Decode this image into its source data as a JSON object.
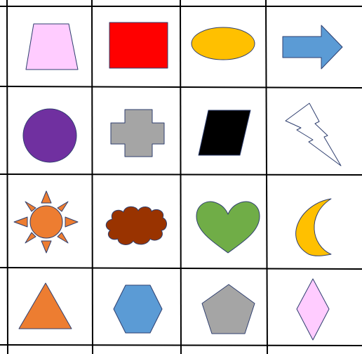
{
  "shapes": [
    {
      "row": 1,
      "col": 1,
      "icon": "trapezoid-icon",
      "fill": "#FFCCFF",
      "stroke": "#2F3F6F"
    },
    {
      "row": 1,
      "col": 2,
      "icon": "rectangle-icon",
      "fill": "#FF0000",
      "stroke": "#2F3F6F"
    },
    {
      "row": 1,
      "col": 3,
      "icon": "ellipse-icon",
      "fill": "#FFC000",
      "stroke": "#2F3F6F"
    },
    {
      "row": 1,
      "col": 4,
      "icon": "right-arrow-icon",
      "fill": "#5B9BD5",
      "stroke": "#2F3F6F"
    },
    {
      "row": 2,
      "col": 1,
      "icon": "circle-icon",
      "fill": "#7030A0",
      "stroke": "#2F3F6F"
    },
    {
      "row": 2,
      "col": 2,
      "icon": "cross-icon",
      "fill": "#A5A5A5",
      "stroke": "#2F3F6F"
    },
    {
      "row": 2,
      "col": 3,
      "icon": "parallelogram-icon",
      "fill": "#000000",
      "stroke": "#2F3F6F"
    },
    {
      "row": 2,
      "col": 4,
      "icon": "lightning-bolt-icon",
      "fill": "#FFFFFF",
      "stroke": "#2F3F6F"
    },
    {
      "row": 3,
      "col": 1,
      "icon": "sun-icon",
      "fill": "#ED7D31",
      "stroke": "#2F3F6F"
    },
    {
      "row": 3,
      "col": 2,
      "icon": "cloud-icon",
      "fill": "#993300",
      "stroke": "#2F3F6F"
    },
    {
      "row": 3,
      "col": 3,
      "icon": "heart-icon",
      "fill": "#70AD47",
      "stroke": "#2F3F6F"
    },
    {
      "row": 3,
      "col": 4,
      "icon": "crescent-moon-icon",
      "fill": "#FFC000",
      "stroke": "#2F3F6F"
    },
    {
      "row": 4,
      "col": 1,
      "icon": "triangle-icon",
      "fill": "#ED7D31",
      "stroke": "#2F3F6F"
    },
    {
      "row": 4,
      "col": 2,
      "icon": "hexagon-icon",
      "fill": "#5B9BD5",
      "stroke": "#2F3F6F"
    },
    {
      "row": 4,
      "col": 3,
      "icon": "pentagon-icon",
      "fill": "#A5A5A5",
      "stroke": "#2F3F6F"
    },
    {
      "row": 4,
      "col": 4,
      "icon": "diamond-icon",
      "fill": "#FFCCFF",
      "stroke": "#2F3F6F"
    }
  ]
}
